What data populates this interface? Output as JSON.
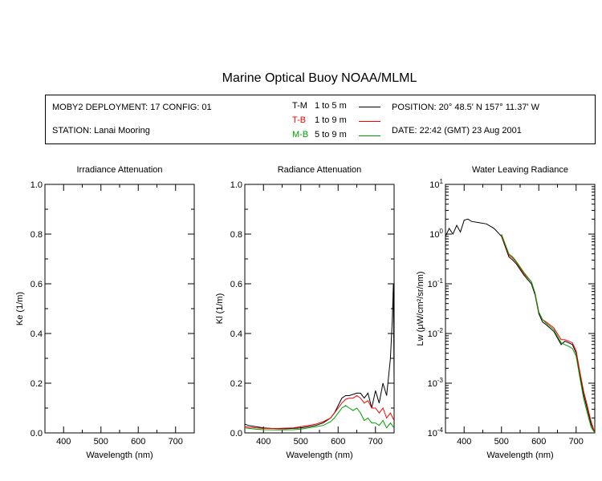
{
  "figure": {
    "title": "Marine Optical Buoy NOAA/MLML"
  },
  "header": {
    "deployment": "MOBY2 DEPLOYMENT: 17 CONFIG: 01",
    "station": "STATION: Lanai Mooring",
    "position": "POSITION: 20° 48.5' N   157° 11.37' W",
    "date": "DATE: 22:42 (GMT) 23 Aug 2001"
  },
  "legend": [
    {
      "code": "T-M",
      "range": "1 to 5  m",
      "color": "#000000"
    },
    {
      "code": "T-B",
      "range": "1 to 9  m",
      "color": "#ff0000"
    },
    {
      "code": "M-B",
      "range": "5 to 9  m",
      "color": "#00a000"
    }
  ],
  "chart_data": [
    {
      "type": "line",
      "title": "Irradiance Attenuation",
      "xlabel": "Wavelength (nm)",
      "ylabel": "Ke  (1/m)",
      "xlim": [
        350,
        750
      ],
      "ylim": [
        0,
        1
      ],
      "xticks": [
        "400",
        "500",
        "600",
        "700"
      ],
      "yticks": [
        "0.0",
        "0.2",
        "0.4",
        "0.6",
        "0.8",
        "1.0"
      ],
      "series": []
    },
    {
      "type": "line",
      "title": "Radiance Attenuation",
      "xlabel": "Wavelength (nm)",
      "ylabel": "Kl  (1/m)",
      "xlim": [
        350,
        750
      ],
      "ylim": [
        0,
        1
      ],
      "xticks": [
        "400",
        "500",
        "600",
        "700"
      ],
      "yticks": [
        "0.0",
        "0.2",
        "0.4",
        "0.6",
        "0.8",
        "1.0"
      ],
      "series": [
        {
          "name": "T-M",
          "color": "#000000",
          "x": [
            350,
            360,
            380,
            400,
            420,
            440,
            460,
            480,
            500,
            520,
            540,
            560,
            580,
            590,
            600,
            610,
            620,
            630,
            640,
            650,
            660,
            670,
            680,
            690,
            700,
            710,
            720,
            730,
            740,
            745,
            748,
            750
          ],
          "y": [
            0.035,
            0.03,
            0.025,
            0.02,
            0.018,
            0.017,
            0.017,
            0.018,
            0.02,
            0.025,
            0.03,
            0.04,
            0.06,
            0.08,
            0.11,
            0.14,
            0.15,
            0.15,
            0.155,
            0.16,
            0.16,
            0.14,
            0.16,
            0.1,
            0.17,
            0.12,
            0.2,
            0.15,
            0.3,
            0.45,
            0.6,
            0.2
          ]
        },
        {
          "name": "T-B",
          "color": "#ff0000",
          "x": [
            350,
            380,
            400,
            440,
            480,
            500,
            520,
            540,
            560,
            580,
            590,
            600,
            610,
            620,
            630,
            640,
            650,
            660,
            670,
            680,
            690,
            700,
            710,
            720,
            730,
            740,
            750
          ],
          "y": [
            0.025,
            0.02,
            0.018,
            0.018,
            0.02,
            0.025,
            0.03,
            0.035,
            0.045,
            0.06,
            0.08,
            0.1,
            0.12,
            0.135,
            0.14,
            0.14,
            0.15,
            0.14,
            0.12,
            0.13,
            0.1,
            0.1,
            0.08,
            0.1,
            0.06,
            0.08,
            0.05
          ]
        },
        {
          "name": "M-B",
          "color": "#00a000",
          "x": [
            350,
            380,
            400,
            440,
            480,
            500,
            520,
            540,
            560,
            580,
            590,
            600,
            610,
            620,
            630,
            640,
            650,
            660,
            670,
            680,
            690,
            700,
            710,
            720,
            730,
            740,
            750
          ],
          "y": [
            0.02,
            0.015,
            0.013,
            0.012,
            0.013,
            0.015,
            0.02,
            0.025,
            0.03,
            0.045,
            0.06,
            0.08,
            0.1,
            0.11,
            0.1,
            0.09,
            0.1,
            0.08,
            0.05,
            0.06,
            0.04,
            0.04,
            0.03,
            0.05,
            0.02,
            0.04,
            0.02
          ]
        }
      ]
    },
    {
      "type": "line",
      "title": "Water Leaving Radiance",
      "xlabel": "Wavelength (nm)",
      "ylabel": "Lw  (μW/cm²/sr/nm)",
      "yscale": "log",
      "xlim": [
        350,
        750
      ],
      "ylim": [
        0.0001,
        10
      ],
      "xticks": [
        "400",
        "500",
        "600",
        "700"
      ],
      "yticks": [
        "10^1",
        "10^0",
        "10^-1",
        "10^-2",
        "10^-3",
        "10^-4"
      ],
      "series": [
        {
          "name": "T-M",
          "color": "#000000",
          "x": [
            350,
            360,
            370,
            380,
            390,
            400,
            410,
            420,
            440,
            460,
            480,
            500,
            520,
            530,
            540,
            560,
            580,
            590,
            600,
            610,
            620,
            640,
            660,
            670,
            680,
            690,
            700,
            710,
            720,
            730,
            740,
            750
          ],
          "y": [
            0.9,
            1.3,
            1.0,
            1.5,
            1.1,
            1.9,
            2.0,
            1.8,
            1.7,
            1.6,
            1.3,
            0.9,
            0.35,
            0.3,
            0.25,
            0.15,
            0.1,
            0.06,
            0.025,
            0.017,
            0.015,
            0.011,
            0.006,
            0.007,
            0.0065,
            0.006,
            0.004,
            0.0015,
            0.0006,
            0.0003,
            0.00015,
            0.0001
          ]
        },
        {
          "name": "T-B",
          "color": "#ff0000",
          "x": [
            500,
            520,
            530,
            540,
            560,
            580,
            590,
            600,
            610,
            620,
            640,
            660,
            670,
            680,
            690,
            700,
            710,
            720,
            730,
            740,
            750
          ],
          "y": [
            0.95,
            0.38,
            0.33,
            0.27,
            0.16,
            0.11,
            0.065,
            0.027,
            0.019,
            0.017,
            0.013,
            0.0075,
            0.0075,
            0.007,
            0.0065,
            0.0045,
            0.0017,
            0.0007,
            0.00035,
            0.00017,
            0.0001
          ]
        },
        {
          "name": "M-B",
          "color": "#00a000",
          "x": [
            500,
            520,
            530,
            540,
            560,
            580,
            590,
            600,
            610,
            620,
            640,
            660,
            670,
            680,
            690,
            700,
            710,
            720,
            730,
            740,
            750
          ],
          "y": [
            1.0,
            0.4,
            0.35,
            0.28,
            0.17,
            0.11,
            0.065,
            0.027,
            0.019,
            0.016,
            0.012,
            0.0065,
            0.006,
            0.0055,
            0.005,
            0.0035,
            0.0013,
            0.0005,
            0.00025,
            0.00013,
            0.0001
          ]
        }
      ]
    }
  ]
}
